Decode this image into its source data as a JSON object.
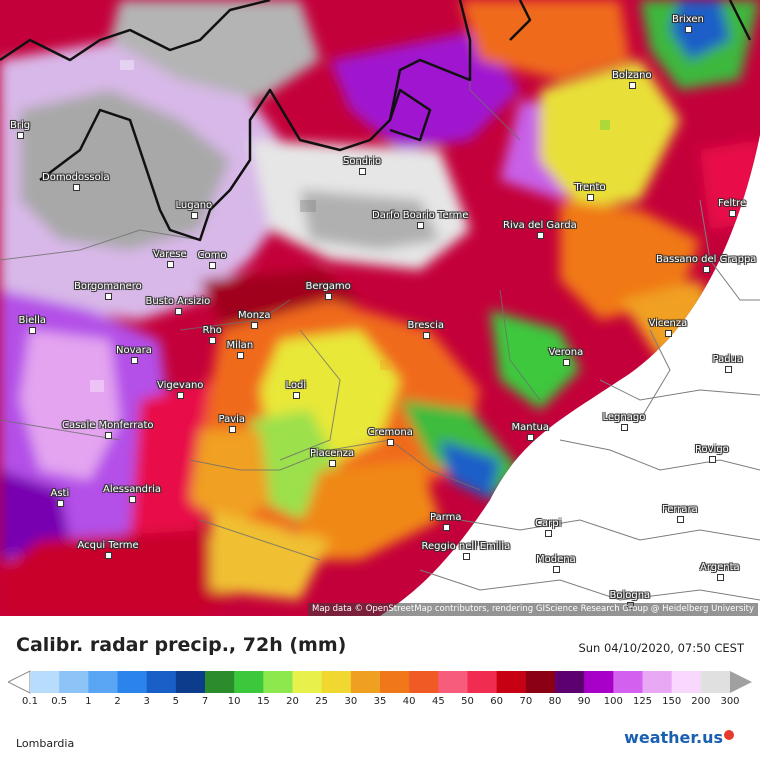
{
  "title": "Calibr. radar precip., 72h (mm)",
  "datetime": "Sun 04/10/2020, 07:50 CEST",
  "region": "Lombardia",
  "logo": {
    "text": "weather.us",
    "icon": "sun-icon"
  },
  "attribution": "Map data © OpenStreetMap contributors, rendering GIScience Research Group @ Heidelberg University",
  "legend": {
    "ticks": [
      "0.1",
      "0.5",
      "1",
      "2",
      "3",
      "5",
      "7",
      "10",
      "15",
      "20",
      "25",
      "30",
      "35",
      "40",
      "45",
      "50",
      "60",
      "70",
      "80",
      "90",
      "100",
      "125",
      "150",
      "200",
      "300"
    ],
    "colors": [
      "#b8dcfc",
      "#8cc4f8",
      "#5aa6f4",
      "#2a84ec",
      "#1a5fc8",
      "#0e3c8c",
      "#2a8c2a",
      "#3cc83c",
      "#8ce84c",
      "#e8f04c",
      "#f0d830",
      "#f0a020",
      "#f07818",
      "#f05a24",
      "#f85c7c",
      "#f02c50",
      "#c80014",
      "#8c0014",
      "#5c0070",
      "#a800c8",
      "#d460f0",
      "#e8a8f4",
      "#f8d8fc",
      "#e0e0e0"
    ],
    "min_arrow_color": "#ffffff",
    "max_arrow_color": "#a0a0a0"
  },
  "cities": [
    {
      "name": "Brixen"
    },
    {
      "name": "Bolzano"
    },
    {
      "name": "Brig"
    },
    {
      "name": "Domodossola"
    },
    {
      "name": "Sondrio"
    },
    {
      "name": "Trento"
    },
    {
      "name": "Feltre"
    },
    {
      "name": "Lugano"
    },
    {
      "name": "Darfo Boario Terme"
    },
    {
      "name": "Riva del Garda"
    },
    {
      "name": "Varese"
    },
    {
      "name": "Como"
    },
    {
      "name": "Bassano del Grappa"
    },
    {
      "name": "Borgomanero"
    },
    {
      "name": "Bergamo"
    },
    {
      "name": "Busto Arsizio"
    },
    {
      "name": "Biella"
    },
    {
      "name": "Monza"
    },
    {
      "name": "Vicenza"
    },
    {
      "name": "Rho"
    },
    {
      "name": "Brescia"
    },
    {
      "name": "Milan"
    },
    {
      "name": "Novara"
    },
    {
      "name": "Verona"
    },
    {
      "name": "Padua"
    },
    {
      "name": "Vigevano"
    },
    {
      "name": "Lodi"
    },
    {
      "name": "Pavia"
    },
    {
      "name": "Legnago"
    },
    {
      "name": "Casale Monferrato"
    },
    {
      "name": "Mantua"
    },
    {
      "name": "Cremona"
    },
    {
      "name": "Rovigo"
    },
    {
      "name": "Piacenza"
    },
    {
      "name": "Alessandria"
    },
    {
      "name": "Asti"
    },
    {
      "name": "Ferrara"
    },
    {
      "name": "Parma"
    },
    {
      "name": "Carpi"
    },
    {
      "name": "Acqui Terme"
    },
    {
      "name": "Reggio nell'Emilia"
    },
    {
      "name": "Modena"
    },
    {
      "name": "Argenta"
    },
    {
      "name": "Bologna"
    }
  ]
}
